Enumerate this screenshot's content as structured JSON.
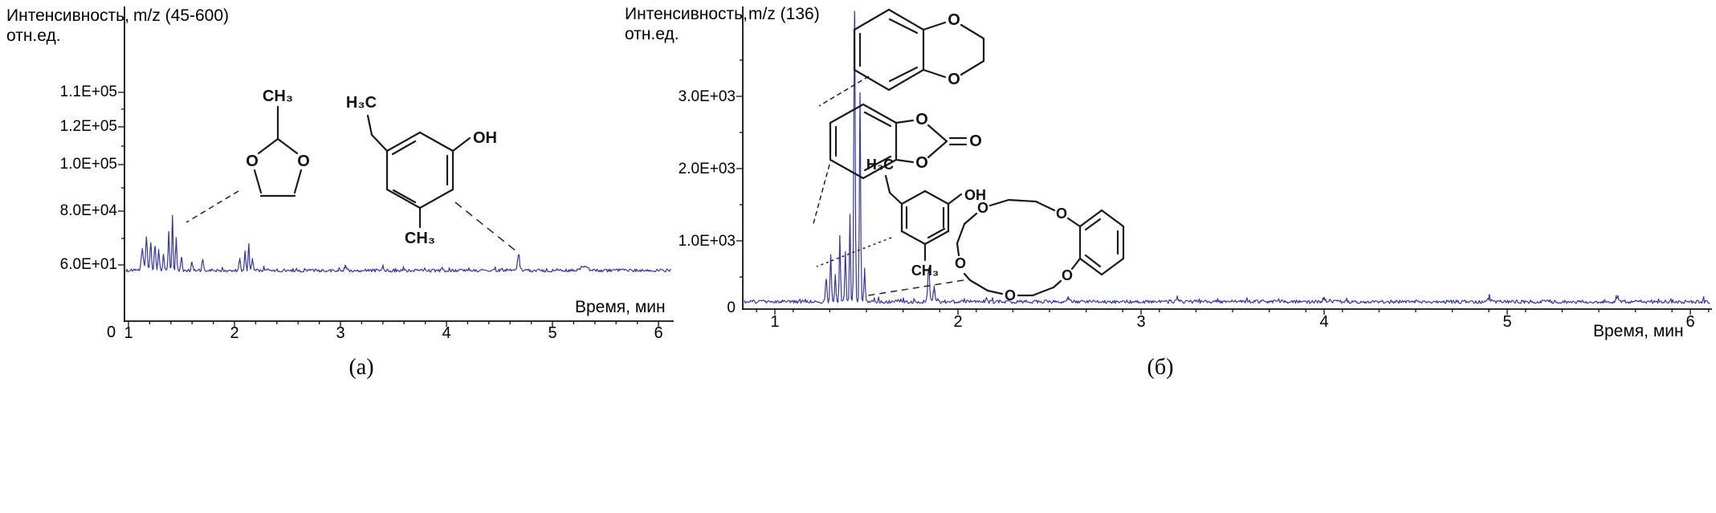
{
  "figure": {
    "caption_a": "(а)",
    "caption_b": "(б)"
  },
  "panel_a": {
    "ylabel_line1": "Интенсивность,",
    "ylabel_line2": "отн.ед.",
    "mz_label": "m/z (45-600)",
    "xlabel": "Время, мин",
    "origin_label": "0",
    "yticks": [
      "1.1E+05",
      "1.2E+05",
      "1.0E+05",
      "8.0E+04",
      "6.0E+01"
    ],
    "xticks": [
      "1",
      "2",
      "3",
      "4",
      "5",
      "6"
    ]
  },
  "panel_b": {
    "ylabel_line1": "Интенсивность,",
    "ylabel_line2": "отн.ед.",
    "mz_label": "m/z (136)",
    "xlabel": "Время, мин",
    "yticks": [
      "3.0E+03",
      "2.0E+03",
      "1.0E+03",
      "0"
    ],
    "xticks": [
      "1",
      "2",
      "3",
      "4",
      "5",
      "6"
    ]
  },
  "atoms": {
    "o": "O",
    "oh": "OH",
    "ch3": "CH₃",
    "h3c": "H₃C"
  },
  "chart_data": [
    {
      "type": "line",
      "panel": "(а)",
      "title": "m/z (45-600)",
      "xlabel": "Время, мин",
      "ylabel": "Интенсивность, отн.ед.",
      "x_range_min": [
        1,
        6
      ],
      "ytick_labels": [
        "1.1E+05",
        "1.2E+05",
        "1.0E+05",
        "8.0E+04",
        "6.0E+01"
      ],
      "xtick_labels": [
        "1",
        "2",
        "3",
        "4",
        "5",
        "6"
      ],
      "line_color": "#3636a6",
      "baseline": 0.006,
      "noise": 0.0055,
      "peaks": [
        {
          "t": 1.13,
          "h": 0.075,
          "w": 0.014
        },
        {
          "t": 1.17,
          "h": 0.12,
          "w": 0.011
        },
        {
          "t": 1.21,
          "h": 0.1,
          "w": 0.01
        },
        {
          "t": 1.25,
          "h": 0.09,
          "w": 0.01
        },
        {
          "t": 1.285,
          "h": 0.075,
          "w": 0.009
        },
        {
          "t": 1.33,
          "h": 0.06,
          "w": 0.009
        },
        {
          "t": 1.38,
          "h": 0.14,
          "w": 0.008
        },
        {
          "t": 1.415,
          "h": 0.205,
          "w": 0.007
        },
        {
          "t": 1.45,
          "h": 0.12,
          "w": 0.008
        },
        {
          "t": 1.5,
          "h": 0.05,
          "w": 0.009
        },
        {
          "t": 1.6,
          "h": 0.025,
          "w": 0.012
        },
        {
          "t": 1.7,
          "h": 0.04,
          "w": 0.009
        },
        {
          "t": 2.05,
          "h": 0.04,
          "w": 0.01
        },
        {
          "t": 2.1,
          "h": 0.065,
          "w": 0.009
        },
        {
          "t": 2.135,
          "h": 0.095,
          "w": 0.008
        },
        {
          "t": 2.17,
          "h": 0.04,
          "w": 0.01
        },
        {
          "t": 3.05,
          "h": 0.015,
          "w": 0.015
        },
        {
          "t": 3.4,
          "h": 0.018,
          "w": 0.012
        },
        {
          "t": 4.68,
          "h": 0.062,
          "w": 0.013
        },
        {
          "t": 5.3,
          "h": 0.014,
          "w": 0.04
        }
      ],
      "annotations": [
        {
          "structure": "2-methyl-1,3-dioxolane",
          "peak_t_min": 1.4
        },
        {
          "structure": "3-ethyl-5-methylphenol",
          "peak_t_min": 4.7
        }
      ]
    },
    {
      "type": "line",
      "panel": "(б)",
      "title": "m/z (136)",
      "xlabel": "Время, мин",
      "ylabel": "Интенсивность, отн.ед.",
      "x_range_min": [
        1,
        6
      ],
      "ytick_labels": [
        "3.0E+03",
        "2.0E+03",
        "1.0E+03",
        "0"
      ],
      "xtick_labels": [
        "1",
        "2",
        "3",
        "4",
        "5",
        "6"
      ],
      "line_color": "#3636a6",
      "baseline": 0.006,
      "noise": 0.006,
      "peaks": [
        {
          "t": 1.28,
          "h": 0.08,
          "w": 0.006
        },
        {
          "t": 1.305,
          "h": 0.16,
          "w": 0.005
        },
        {
          "t": 1.33,
          "h": 0.09,
          "w": 0.005
        },
        {
          "t": 1.355,
          "h": 0.23,
          "w": 0.0045
        },
        {
          "t": 1.385,
          "h": 0.17,
          "w": 0.0045
        },
        {
          "t": 1.41,
          "h": 0.3,
          "w": 0.004
        },
        {
          "t": 1.435,
          "h": 1.05,
          "w": 0.005
        },
        {
          "t": 1.465,
          "h": 0.72,
          "w": 0.0045
        },
        {
          "t": 1.49,
          "h": 0.1,
          "w": 0.005
        },
        {
          "t": 1.84,
          "h": 0.115,
          "w": 0.007
        },
        {
          "t": 1.87,
          "h": 0.05,
          "w": 0.006
        },
        {
          "t": 2.6,
          "h": 0.012,
          "w": 0.01
        },
        {
          "t": 3.2,
          "h": 0.01,
          "w": 0.012
        },
        {
          "t": 4.0,
          "h": 0.012,
          "w": 0.01
        },
        {
          "t": 4.9,
          "h": 0.01,
          "w": 0.012
        },
        {
          "t": 5.6,
          "h": 0.012,
          "w": 0.01
        }
      ],
      "annotations": [
        {
          "structure": "1,4-benzodioxine",
          "peak_t_min": 1.43
        },
        {
          "structure": "1,3-benzodioxol-2-one",
          "peak_t_min": 1.45
        },
        {
          "structure": "3-ethyl-5-methylphenol",
          "peak_t_min": 1.4
        },
        {
          "structure": "benzo-crown-ether",
          "peak_t_min": 1.85
        }
      ]
    }
  ]
}
